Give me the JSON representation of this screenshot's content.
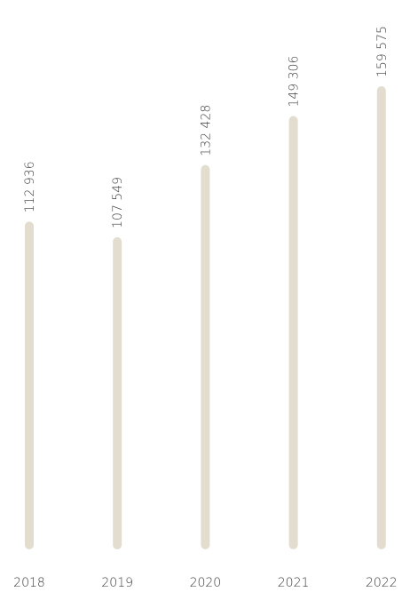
{
  "chart_data": {
    "type": "bar",
    "categories": [
      "2018",
      "2019",
      "2020",
      "2021",
      "2022"
    ],
    "values": [
      112936,
      107549,
      132428,
      149306,
      159575
    ],
    "value_labels": [
      "112 936",
      "107 549",
      "132 428",
      "149 306",
      "159 575"
    ],
    "color": "#e2ddcf"
  }
}
